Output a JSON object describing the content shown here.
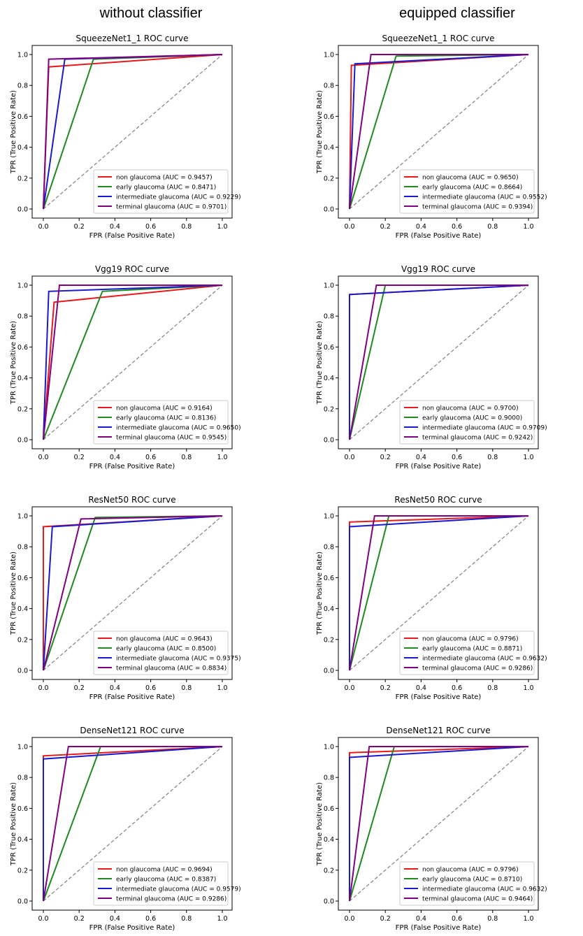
{
  "headers": {
    "left": "without classifier",
    "right": "equipped classifier"
  },
  "colors": {
    "non": "#e41a1c",
    "early": "#1f8a1f",
    "intermediate": "#1a1acd",
    "terminal": "#800080",
    "chance": "#808080"
  },
  "chart_data": [
    {
      "type": "line",
      "title": "SqueezeNet1_1 ROC curve",
      "xlabel": "FPR (False Positive Rate)",
      "ylabel": "TPR (True Positive Rate)",
      "xlim": [
        0,
        1
      ],
      "ylim": [
        0,
        1
      ],
      "xticks": [
        "0.0",
        "0.2",
        "0.4",
        "0.6",
        "0.8",
        "1.0"
      ],
      "yticks": [
        "0.0",
        "0.2",
        "0.4",
        "0.6",
        "0.8",
        "1.0"
      ],
      "legend_position": "lower-right",
      "series": [
        {
          "name": "non glaucoma (AUC = 0.9457)",
          "color_key": "non",
          "x": [
            0,
            0.03,
            1
          ],
          "y": [
            0,
            0.92,
            1
          ]
        },
        {
          "name": "early glaucoma (AUC = 0.8471)",
          "color_key": "early",
          "x": [
            0,
            0.28,
            1
          ],
          "y": [
            0,
            0.97,
            1
          ]
        },
        {
          "name": "intermediate glaucoma (AUC = 0.9229)",
          "color_key": "intermediate",
          "x": [
            0,
            0.12,
            1
          ],
          "y": [
            0,
            0.97,
            1
          ]
        },
        {
          "name": "terminal glaucoma (AUC = 0.9701)",
          "color_key": "terminal",
          "x": [
            0,
            0.03,
            1
          ],
          "y": [
            0,
            0.97,
            1
          ]
        }
      ]
    },
    {
      "type": "line",
      "title": "SqueezeNet1_1 ROC curve",
      "xlabel": "FPR (False Positive Rate)",
      "ylabel": "TPR (True Positive Rate)",
      "xlim": [
        0,
        1
      ],
      "ylim": [
        0,
        1
      ],
      "xticks": [
        "0.0",
        "0.2",
        "0.4",
        "0.6",
        "0.8",
        "1.0"
      ],
      "yticks": [
        "0.0",
        "0.2",
        "0.4",
        "0.6",
        "0.8",
        "1.0"
      ],
      "legend_position": "lower-right",
      "series": [
        {
          "name": "non glaucoma (AUC = 0.9650)",
          "color_key": "non",
          "x": [
            0,
            0.01,
            1
          ],
          "y": [
            0,
            0.93,
            1
          ]
        },
        {
          "name": "early glaucoma (AUC = 0.8664)",
          "color_key": "early",
          "x": [
            0,
            0.26,
            1
          ],
          "y": [
            0,
            0.99,
            1
          ]
        },
        {
          "name": "intermediate glaucoma (AUC = 0.9552)",
          "color_key": "intermediate",
          "x": [
            0,
            0.03,
            1
          ],
          "y": [
            0,
            0.94,
            1
          ]
        },
        {
          "name": "terminal glaucoma (AUC = 0.9394)",
          "color_key": "terminal",
          "x": [
            0,
            0.12,
            1
          ],
          "y": [
            0,
            1.0,
            1
          ]
        }
      ]
    },
    {
      "type": "line",
      "title": "Vgg19 ROC curve",
      "xlabel": "FPR (False Positive Rate)",
      "ylabel": "TPR (True Positive Rate)",
      "xlim": [
        0,
        1
      ],
      "ylim": [
        0,
        1
      ],
      "xticks": [
        "0.0",
        "0.2",
        "0.4",
        "0.6",
        "0.8",
        "1.0"
      ],
      "yticks": [
        "0.0",
        "0.2",
        "0.4",
        "0.6",
        "0.8",
        "1.0"
      ],
      "legend_position": "lower-right",
      "series": [
        {
          "name": "non glaucoma (AUC = 0.9164)",
          "color_key": "non",
          "x": [
            0,
            0.06,
            1
          ],
          "y": [
            0,
            0.89,
            1
          ]
        },
        {
          "name": "early glaucoma (AUC = 0.8136)",
          "color_key": "early",
          "x": [
            0,
            0.33,
            1
          ],
          "y": [
            0,
            0.96,
            1
          ]
        },
        {
          "name": "intermediate glaucoma (AUC = 0.9650)",
          "color_key": "intermediate",
          "x": [
            0,
            0.03,
            1
          ],
          "y": [
            0,
            0.96,
            1
          ]
        },
        {
          "name": "terminal glaucoma (AUC = 0.9545)",
          "color_key": "terminal",
          "x": [
            0,
            0.09,
            1
          ],
          "y": [
            0,
            1.0,
            1
          ]
        }
      ]
    },
    {
      "type": "line",
      "title": "Vgg19 ROC curve",
      "xlabel": "FPR (False Positive Rate)",
      "ylabel": "TPR (True Positive Rate)",
      "xlim": [
        0,
        1
      ],
      "ylim": [
        0,
        1
      ],
      "xticks": [
        "0.0",
        "0.2",
        "0.4",
        "0.6",
        "0.8",
        "1.0"
      ],
      "yticks": [
        "0.0",
        "0.2",
        "0.4",
        "0.6",
        "0.8",
        "1.0"
      ],
      "legend_position": "lower-right",
      "series": [
        {
          "name": "non glaucoma (AUC = 0.9700)",
          "color_key": "non",
          "x": [
            0,
            0.0,
            1
          ],
          "y": [
            0,
            0.94,
            1
          ]
        },
        {
          "name": "early glaucoma (AUC = 0.9000)",
          "color_key": "early",
          "x": [
            0,
            0.2,
            1
          ],
          "y": [
            0,
            1.0,
            1
          ]
        },
        {
          "name": "intermediate glaucoma (AUC = 0.9709)",
          "color_key": "intermediate",
          "x": [
            0,
            0.0,
            1
          ],
          "y": [
            0,
            0.94,
            1
          ]
        },
        {
          "name": "terminal glaucoma (AUC = 0.9242)",
          "color_key": "terminal",
          "x": [
            0,
            0.15,
            1
          ],
          "y": [
            0,
            1.0,
            1
          ]
        }
      ]
    },
    {
      "type": "line",
      "title": "ResNet50 ROC curve",
      "xlabel": "FPR (False Positive Rate)",
      "ylabel": "TPR (True Positive Rate)",
      "xlim": [
        0,
        1
      ],
      "ylim": [
        0,
        1
      ],
      "xticks": [
        "0.0",
        "0.2",
        "0.4",
        "0.6",
        "0.8",
        "1.0"
      ],
      "yticks": [
        "0.0",
        "0.2",
        "0.4",
        "0.6",
        "0.8",
        "1.0"
      ],
      "legend_position": "lower-right",
      "series": [
        {
          "name": "non glaucoma (AUC = 0.9643)",
          "color_key": "non",
          "x": [
            0,
            0.0,
            1
          ],
          "y": [
            0,
            0.93,
            1
          ]
        },
        {
          "name": "early glaucoma (AUC = 0.8500)",
          "color_key": "early",
          "x": [
            0,
            0.29,
            1
          ],
          "y": [
            0,
            0.99,
            1
          ]
        },
        {
          "name": "intermediate glaucoma (AUC = 0.9375)",
          "color_key": "intermediate",
          "x": [
            0,
            0.05,
            1
          ],
          "y": [
            0,
            0.93,
            1
          ]
        },
        {
          "name": "terminal glaucoma (AUC = 0.8834)",
          "color_key": "terminal",
          "x": [
            0,
            0.21,
            1
          ],
          "y": [
            0,
            0.98,
            1
          ]
        }
      ]
    },
    {
      "type": "line",
      "title": "ResNet50 ROC curve",
      "xlabel": "FPR (False Positive Rate)",
      "ylabel": "TPR (True Positive Rate)",
      "xlim": [
        0,
        1
      ],
      "ylim": [
        0,
        1
      ],
      "xticks": [
        "0.0",
        "0.2",
        "0.4",
        "0.6",
        "0.8",
        "1.0"
      ],
      "yticks": [
        "0.0",
        "0.2",
        "0.4",
        "0.6",
        "0.8",
        "1.0"
      ],
      "legend_position": "lower-right",
      "series": [
        {
          "name": "non glaucoma (AUC = 0.9796)",
          "color_key": "non",
          "x": [
            0,
            0.0,
            1
          ],
          "y": [
            0,
            0.96,
            1
          ]
        },
        {
          "name": "early glaucoma (AUC = 0.8871)",
          "color_key": "early",
          "x": [
            0,
            0.22,
            1
          ],
          "y": [
            0,
            1.0,
            1
          ]
        },
        {
          "name": "intermediate glaucoma (AUC = 0.9632)",
          "color_key": "intermediate",
          "x": [
            0,
            0.0,
            1
          ],
          "y": [
            0,
            0.93,
            1
          ]
        },
        {
          "name": "terminal glaucoma (AUC = 0.9286)",
          "color_key": "terminal",
          "x": [
            0,
            0.14,
            1
          ],
          "y": [
            0,
            1.0,
            1
          ]
        }
      ]
    },
    {
      "type": "line",
      "title": "DenseNet121 ROC curve",
      "xlabel": "FPR (False Positive Rate)",
      "ylabel": "TPR (True Positive Rate)",
      "xlim": [
        0,
        1
      ],
      "ylim": [
        0,
        1
      ],
      "xticks": [
        "0.0",
        "0.2",
        "0.4",
        "0.6",
        "0.8",
        "1.0"
      ],
      "yticks": [
        "0.0",
        "0.2",
        "0.4",
        "0.6",
        "0.8",
        "1.0"
      ],
      "legend_position": "lower-right",
      "series": [
        {
          "name": "non glaucoma (AUC = 0.9694)",
          "color_key": "non",
          "x": [
            0,
            0.0,
            1
          ],
          "y": [
            0,
            0.94,
            1
          ]
        },
        {
          "name": "early glaucoma (AUC = 0.8387)",
          "color_key": "early",
          "x": [
            0,
            0.32,
            1
          ],
          "y": [
            0,
            1.0,
            1
          ]
        },
        {
          "name": "intermediate glaucoma (AUC = 0.9579)",
          "color_key": "intermediate",
          "x": [
            0,
            0.0,
            1
          ],
          "y": [
            0,
            0.92,
            1
          ]
        },
        {
          "name": "terminal glaucoma (AUC = 0.9286)",
          "color_key": "terminal",
          "x": [
            0,
            0.14,
            1
          ],
          "y": [
            0,
            1.0,
            1
          ]
        }
      ]
    },
    {
      "type": "line",
      "title": "DenseNet121 ROC curve",
      "xlabel": "FPR (False Positive Rate)",
      "ylabel": "TPR (True Positive Rate)",
      "xlim": [
        0,
        1
      ],
      "ylim": [
        0,
        1
      ],
      "xticks": [
        "0.0",
        "0.2",
        "0.4",
        "0.6",
        "0.8",
        "1.0"
      ],
      "yticks": [
        "0.0",
        "0.2",
        "0.4",
        "0.6",
        "0.8",
        "1.0"
      ],
      "legend_position": "lower-right",
      "series": [
        {
          "name": "non glaucoma (AUC = 0.9796)",
          "color_key": "non",
          "x": [
            0,
            0.0,
            1
          ],
          "y": [
            0,
            0.96,
            1
          ]
        },
        {
          "name": "early glaucoma (AUC = 0.8710)",
          "color_key": "early",
          "x": [
            0,
            0.25,
            1
          ],
          "y": [
            0,
            1.0,
            1
          ]
        },
        {
          "name": "intermediate glaucoma (AUC = 0.9632)",
          "color_key": "intermediate",
          "x": [
            0,
            0.0,
            1
          ],
          "y": [
            0,
            0.93,
            1
          ]
        },
        {
          "name": "terminal glaucoma (AUC = 0.9464)",
          "color_key": "terminal",
          "x": [
            0,
            0.11,
            1
          ],
          "y": [
            0,
            1.0,
            1
          ]
        }
      ]
    }
  ]
}
